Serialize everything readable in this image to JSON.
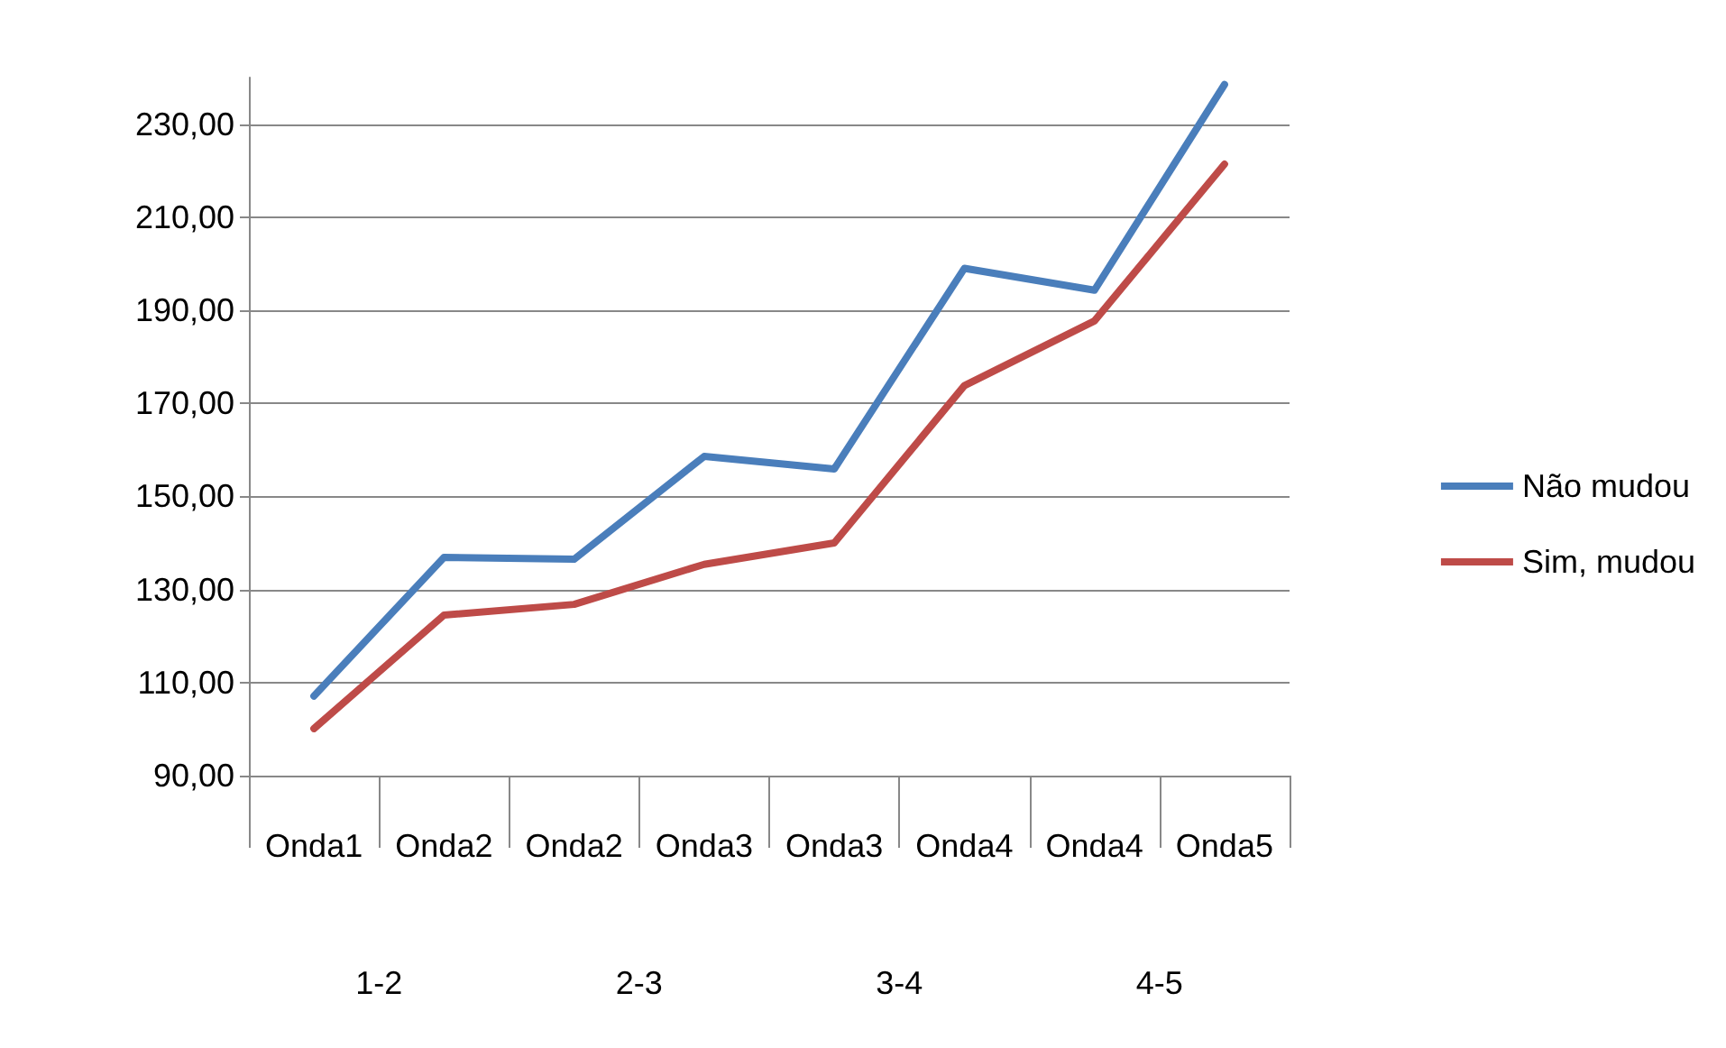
{
  "chart_data": {
    "type": "line",
    "categories": [
      "Onda1",
      "Onda2",
      "Onda2",
      "Onda3",
      "Onda3",
      "Onda4",
      "Onda4",
      "Onda5"
    ],
    "series": [
      {
        "name": "Não mudou",
        "color": "#4a7ebb",
        "values": [
          107.1,
          136.9,
          136.5,
          158.6,
          155.9,
          199,
          194.3,
          238.5
        ]
      },
      {
        "name": "Sim, mudou",
        "color": "#be4b48",
        "values": [
          100.1,
          124.5,
          126.8,
          135.4,
          140,
          173.8,
          187.7,
          221.4
        ]
      }
    ],
    "ylim": [
      90,
      240
    ],
    "yticks": [
      {
        "value": 90,
        "label": "90,00"
      },
      {
        "value": 110,
        "label": "110,00"
      },
      {
        "value": 130,
        "label": "130,00"
      },
      {
        "value": 150,
        "label": "150,00"
      },
      {
        "value": 170,
        "label": "170,00"
      },
      {
        "value": 190,
        "label": "190,00"
      },
      {
        "value": 210,
        "label": "210,00"
      },
      {
        "value": 230,
        "label": "230,00"
      }
    ],
    "annotations": [
      "1-2",
      "2-3",
      "3-4",
      "4-5"
    ],
    "grid": "y",
    "legend": "right",
    "marker": "none",
    "line_style": "solid"
  }
}
